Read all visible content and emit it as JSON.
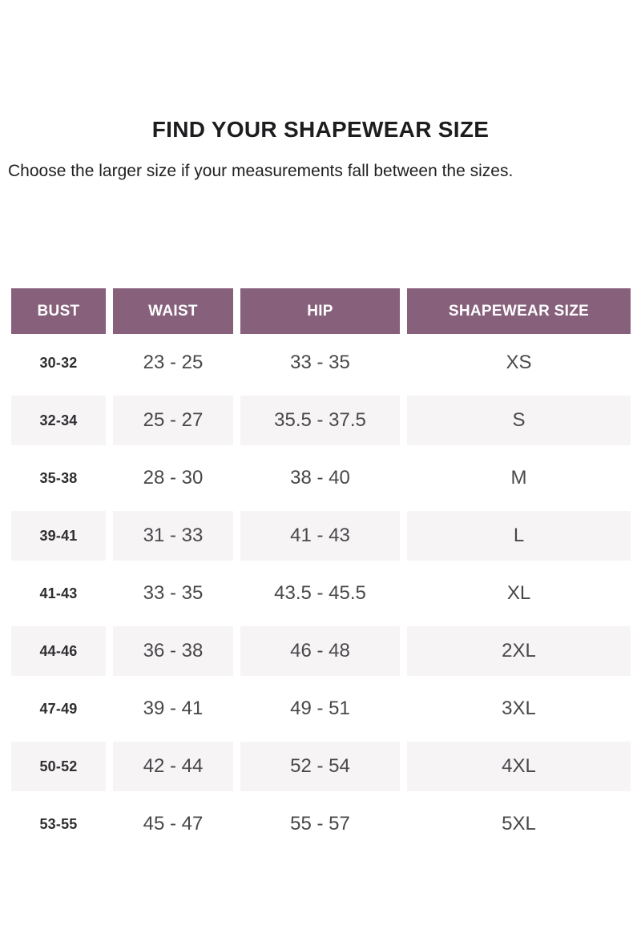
{
  "page": {
    "title": "FIND YOUR SHAPEWEAR SIZE",
    "subtitle": "Choose the larger size if your measurements fall between the sizes."
  },
  "colors": {
    "header_bg": "#87607C",
    "header_text": "#FFFFFF",
    "alt_row_bg": "#F7F4F6",
    "data_text": "#48484A",
    "bust_text": "#2E2E30"
  },
  "table": {
    "headers": [
      "BUST",
      "WAIST",
      "HIP",
      "SHAPEWEAR SIZE"
    ],
    "rows": [
      {
        "bust": "30-32",
        "waist": "23 - 25",
        "hip": "33 - 35",
        "size": "XS"
      },
      {
        "bust": "32-34",
        "waist": "25 - 27",
        "hip": "35.5 - 37.5",
        "size": "S"
      },
      {
        "bust": "35-38",
        "waist": "28 - 30",
        "hip": "38 - 40",
        "size": "M"
      },
      {
        "bust": "39-41",
        "waist": "31 - 33",
        "hip": "41 - 43",
        "size": "L"
      },
      {
        "bust": "41-43",
        "waist": "33 - 35",
        "hip": "43.5 - 45.5",
        "size": "XL"
      },
      {
        "bust": "44-46",
        "waist": "36 - 38",
        "hip": "46 - 48",
        "size": "2XL"
      },
      {
        "bust": "47-49",
        "waist": "39 - 41",
        "hip": "49 - 51",
        "size": "3XL"
      },
      {
        "bust": "50-52",
        "waist": "42 - 44",
        "hip": "52 - 54",
        "size": "4XL"
      },
      {
        "bust": "53-55",
        "waist": "45 - 47",
        "hip": "55 - 57",
        "size": "5XL"
      }
    ]
  }
}
